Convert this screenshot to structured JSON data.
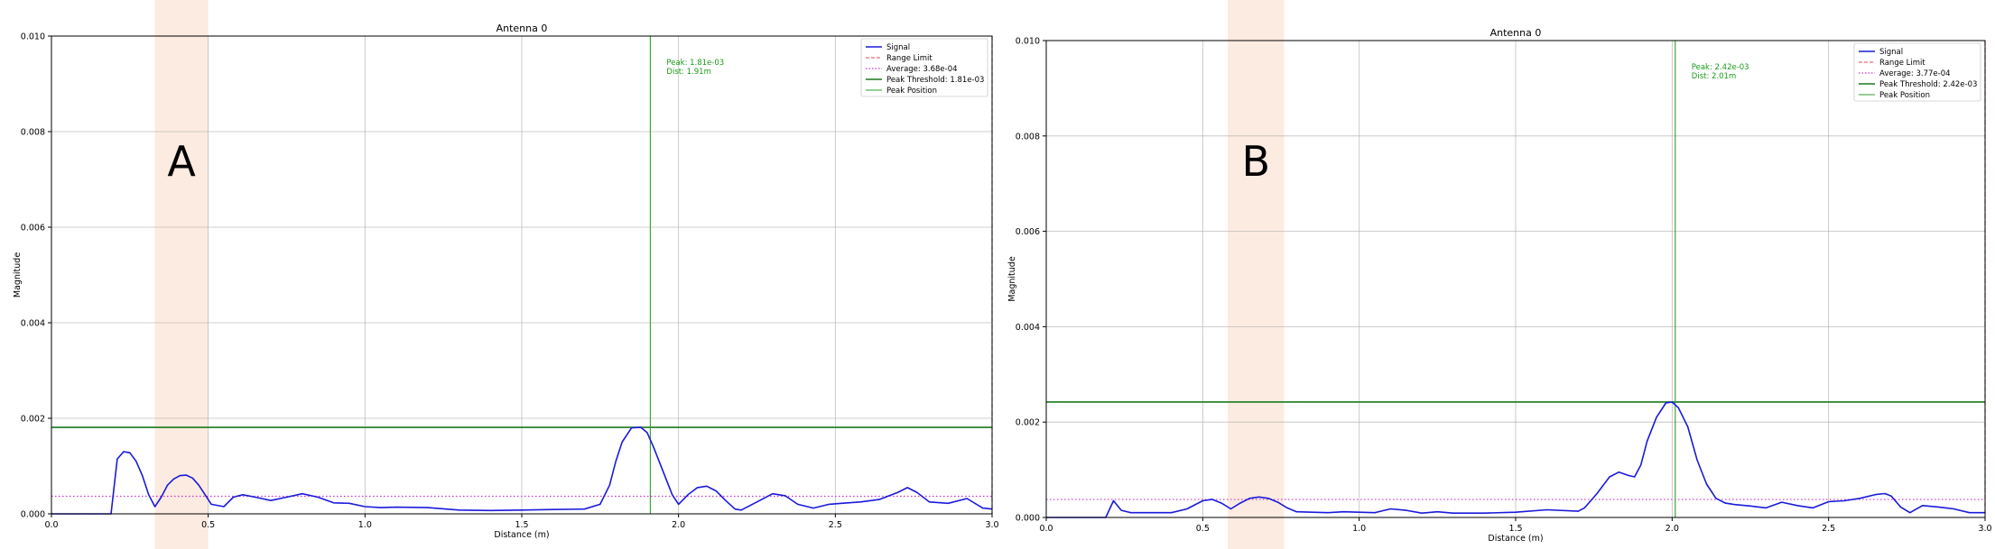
{
  "chart_data": [
    {
      "type": "line",
      "title": "Antenna 0",
      "xlabel": "Distance (m)",
      "ylabel": "Magnitude",
      "xlim": [
        0.0,
        3.0
      ],
      "ylim": [
        0.0,
        0.01
      ],
      "xticks": [
        "0.0",
        "0.5",
        "1.0",
        "1.5",
        "2.0",
        "2.5",
        "3.0"
      ],
      "xtick_values": [
        0.0,
        0.5,
        1.0,
        1.5,
        2.0,
        2.5,
        3.0
      ],
      "yticks": [
        "0.000",
        "0.002",
        "0.004",
        "0.006",
        "0.008",
        "0.010"
      ],
      "ytick_values": [
        0.0,
        0.002,
        0.004,
        0.006,
        0.008,
        0.01
      ],
      "grid": true,
      "legend_position": "top-right",
      "panel_label": "A",
      "highlight_band": [
        0.33,
        0.5
      ],
      "range_limit_x": 3.0,
      "average": 0.000368,
      "peak_threshold": 0.00181,
      "peak_position": 1.91,
      "peak_annotation": [
        "Peak: 1.81e-03",
        "Dist: 1.91m"
      ],
      "legend": [
        "Signal",
        "Range Limit",
        "Average: 3.68e-04",
        "Peak Threshold: 1.81e-03",
        "Peak Position"
      ],
      "series": [
        {
          "name": "Signal",
          "x": [
            0.0,
            0.1,
            0.19,
            0.21,
            0.23,
            0.25,
            0.27,
            0.29,
            0.31,
            0.33,
            0.35,
            0.37,
            0.39,
            0.41,
            0.43,
            0.45,
            0.47,
            0.49,
            0.51,
            0.55,
            0.58,
            0.61,
            0.65,
            0.7,
            0.75,
            0.8,
            0.85,
            0.9,
            0.95,
            1.0,
            1.05,
            1.1,
            1.2,
            1.3,
            1.4,
            1.5,
            1.6,
            1.7,
            1.75,
            1.78,
            1.8,
            1.82,
            1.85,
            1.88,
            1.9,
            1.92,
            1.95,
            1.98,
            2.0,
            2.03,
            2.06,
            2.09,
            2.12,
            2.15,
            2.18,
            2.2,
            2.25,
            2.3,
            2.34,
            2.38,
            2.43,
            2.48,
            2.52,
            2.58,
            2.64,
            2.7,
            2.73,
            2.76,
            2.8,
            2.86,
            2.92,
            2.97,
            3.0
          ],
          "values": [
            0.0,
            0.0,
            0.0,
            0.00115,
            0.0013,
            0.00128,
            0.0011,
            0.0008,
            0.0004,
            0.00015,
            0.00035,
            0.0006,
            0.00073,
            0.0008,
            0.00081,
            0.00075,
            0.0006,
            0.0004,
            0.0002,
            0.00015,
            0.00035,
            0.0004,
            0.00035,
            0.00028,
            0.00035,
            0.00042,
            0.00035,
            0.00023,
            0.00022,
            0.00015,
            0.00013,
            0.00014,
            0.00013,
            8e-05,
            7e-05,
            8e-05,
            9e-05,
            0.0001,
            0.0002,
            0.0006,
            0.0011,
            0.0015,
            0.0018,
            0.00181,
            0.0017,
            0.0014,
            0.0009,
            0.0004,
            0.0002,
            0.0004,
            0.00055,
            0.00058,
            0.00048,
            0.00028,
            0.0001,
            8e-05,
            0.00025,
            0.00042,
            0.00038,
            0.0002,
            0.00012,
            0.0002,
            0.00022,
            0.00025,
            0.0003,
            0.00045,
            0.00055,
            0.00045,
            0.00025,
            0.00022,
            0.00032,
            0.00012,
            0.0001
          ]
        }
      ]
    },
    {
      "type": "line",
      "title": "Antenna 0",
      "xlabel": "Distance (m)",
      "ylabel": "Magnitude",
      "xlim": [
        0.0,
        3.0
      ],
      "ylim": [
        0.0,
        0.01
      ],
      "xticks": [
        "0.0",
        "0.5",
        "1.0",
        "1.5",
        "2.0",
        "2.5",
        "3.0"
      ],
      "xtick_values": [
        0.0,
        0.5,
        1.0,
        1.5,
        2.0,
        2.5,
        3.0
      ],
      "yticks": [
        "0.000",
        "0.002",
        "0.004",
        "0.006",
        "0.008",
        "0.010"
      ],
      "ytick_values": [
        0.0,
        0.002,
        0.004,
        0.006,
        0.008,
        0.01
      ],
      "grid": true,
      "legend_position": "top-right",
      "panel_label": "B",
      "highlight_band": [
        0.58,
        0.76
      ],
      "range_limit_x": 3.0,
      "average": 0.000377,
      "peak_threshold": 0.00242,
      "peak_position": 2.01,
      "peak_annotation": [
        "Peak: 2.42e-03",
        "Dist: 2.01m"
      ],
      "legend": [
        "Signal",
        "Range Limit",
        "Average: 3.77e-04",
        "Peak Threshold: 2.42e-03",
        "Peak Position"
      ],
      "series": [
        {
          "name": "Signal",
          "x": [
            0.0,
            0.1,
            0.19,
            0.215,
            0.24,
            0.27,
            0.3,
            0.35,
            0.4,
            0.45,
            0.5,
            0.53,
            0.56,
            0.59,
            0.62,
            0.65,
            0.68,
            0.71,
            0.74,
            0.77,
            0.8,
            0.85,
            0.9,
            0.95,
            1.0,
            1.05,
            1.1,
            1.15,
            1.2,
            1.25,
            1.3,
            1.4,
            1.5,
            1.6,
            1.7,
            1.72,
            1.76,
            1.8,
            1.83,
            1.86,
            1.88,
            1.9,
            1.92,
            1.95,
            1.98,
            2.0,
            2.02,
            2.05,
            2.08,
            2.11,
            2.14,
            2.17,
            2.2,
            2.25,
            2.3,
            2.35,
            2.4,
            2.45,
            2.5,
            2.55,
            2.6,
            2.65,
            2.68,
            2.7,
            2.73,
            2.76,
            2.8,
            2.85,
            2.9,
            2.95,
            3.0
          ],
          "values": [
            0.0,
            0.0,
            0.0,
            0.00035,
            0.00015,
            0.0001,
            0.0001,
            0.0001,
            0.0001,
            0.00018,
            0.00035,
            0.00038,
            0.0003,
            0.00018,
            0.0003,
            0.0004,
            0.00043,
            0.0004,
            0.00032,
            0.0002,
            0.00012,
            0.00011,
            0.0001,
            0.00012,
            0.00011,
            0.0001,
            0.00018,
            0.00015,
            9e-05,
            0.00012,
            9e-05,
            9e-05,
            0.00011,
            0.00016,
            0.00013,
            0.0002,
            0.0005,
            0.00085,
            0.00095,
            0.00088,
            0.00085,
            0.0011,
            0.0016,
            0.0021,
            0.0024,
            0.00242,
            0.0023,
            0.0019,
            0.0012,
            0.0007,
            0.0004,
            0.0003,
            0.00027,
            0.00024,
            0.0002,
            0.00032,
            0.00025,
            0.0002,
            0.00033,
            0.00035,
            0.0004,
            0.00048,
            0.0005,
            0.00045,
            0.00022,
            0.0001,
            0.00025,
            0.00022,
            0.00018,
            0.0001,
            0.0001
          ]
        }
      ]
    }
  ]
}
